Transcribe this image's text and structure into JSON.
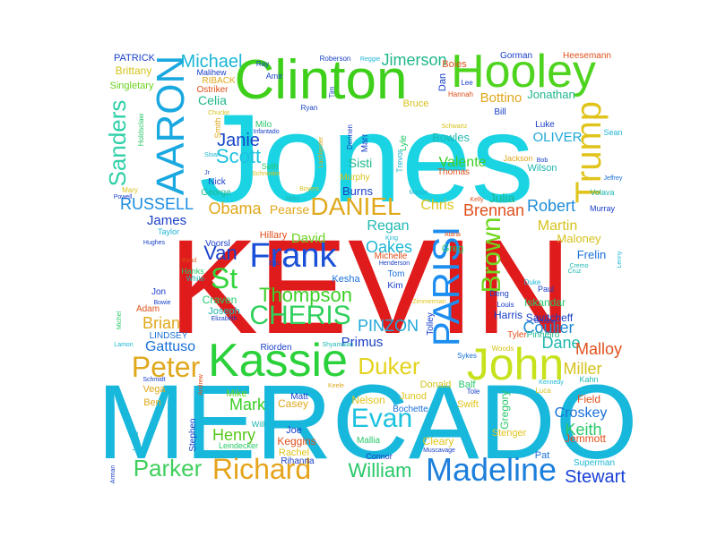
{
  "words": [
    {
      "text": "KEVIN",
      "color": "#e01b1b"
    },
    {
      "text": "Jones",
      "color": "#1ad3e3"
    },
    {
      "text": "MERCADO",
      "color": "#18b7dc"
    },
    {
      "text": "Clinton",
      "color": "#3ecf1b"
    },
    {
      "text": "Hooley",
      "color": "#4ed41e"
    },
    {
      "text": "Kassie",
      "color": "#2bd13a"
    },
    {
      "text": "John",
      "color": "#c7e21d"
    },
    {
      "text": "Madeline",
      "color": "#1c7fdc"
    },
    {
      "text": "AARON",
      "color": "#19a8e0"
    },
    {
      "text": "PARISI",
      "color": "#1d8ef0"
    },
    {
      "text": "Richard",
      "color": "#e5a41b"
    },
    {
      "text": "Trump",
      "color": "#e0c41c"
    },
    {
      "text": "Frank",
      "color": "#1a4fd8"
    },
    {
      "text": "Brown",
      "color": "#6fd81e"
    },
    {
      "text": "Peter",
      "color": "#e0a81c"
    },
    {
      "text": "Parker",
      "color": "#3fcf5c"
    },
    {
      "text": "DANIEL",
      "color": "#e0a81c"
    },
    {
      "text": "Sanders",
      "color": "#2fd0a8"
    },
    {
      "text": "CHERIS",
      "color": "#2fd05c"
    },
    {
      "text": "St",
      "color": "#33d33d"
    },
    {
      "text": "Evan",
      "color": "#1cc2e0"
    },
    {
      "text": "William",
      "color": "#28c86a"
    },
    {
      "text": "Stewart",
      "color": "#1940d8"
    },
    {
      "text": "Duker",
      "color": "#e4d21c"
    },
    {
      "text": "Thompson",
      "color": "#3acf26"
    },
    {
      "text": "Scott",
      "color": "#1cc2e0"
    },
    {
      "text": "Janie",
      "color": "#1846c8"
    },
    {
      "text": "Michael",
      "color": "#1ab6d6"
    },
    {
      "text": "Jimerson",
      "color": "#1fb78c"
    },
    {
      "text": "RUSSELL",
      "color": "#1a8ce0"
    },
    {
      "text": "Obama",
      "color": "#e0a81c"
    },
    {
      "text": "Brennan",
      "color": "#e0501c"
    },
    {
      "text": "Robert",
      "color": "#1f8cd8"
    },
    {
      "text": "Martin",
      "color": "#d6c21c"
    },
    {
      "text": "Chris",
      "color": "#e0c41c"
    },
    {
      "text": "Regan",
      "color": "#1fb7b0"
    },
    {
      "text": "Oakes",
      "color": "#1fb7d4"
    },
    {
      "text": "David",
      "color": "#6ad21e"
    },
    {
      "text": "Van",
      "color": "#1a40c8"
    },
    {
      "text": "Brian",
      "color": "#e0a81c"
    },
    {
      "text": "Coulier",
      "color": "#1f8cd8"
    },
    {
      "text": "Dane",
      "color": "#1fb7b0"
    },
    {
      "text": "Malloy",
      "color": "#e0501c"
    },
    {
      "text": "Miller",
      "color": "#d6c21c"
    },
    {
      "text": "Gattuso",
      "color": "#1a6fd8"
    },
    {
      "text": "PINZON",
      "color": "#1fa8d8"
    },
    {
      "text": "Primus",
      "color": "#1a40c8"
    },
    {
      "text": "Mark",
      "color": "#3acf26"
    },
    {
      "text": "Henry",
      "color": "#58c81e"
    },
    {
      "text": "Croskey",
      "color": "#1a6fd8"
    },
    {
      "text": "Keith",
      "color": "#28c86a"
    },
    {
      "text": "Valente",
      "color": "#3acf26"
    },
    {
      "text": "Bottino",
      "color": "#e0a81c"
    },
    {
      "text": "Jonathan",
      "color": "#1fb78c"
    },
    {
      "text": "OLIVER",
      "color": "#1fa8d8"
    },
    {
      "text": "Bowles",
      "color": "#1fb7b0"
    },
    {
      "text": "James",
      "color": "#1a40c8"
    },
    {
      "text": "Pearse",
      "color": "#e0a81c"
    },
    {
      "text": "Burns",
      "color": "#1a40c8"
    },
    {
      "text": "Sisti",
      "color": "#1fb78c"
    },
    {
      "text": "Celia",
      "color": "#1fb78c"
    },
    {
      "text": "Brittany",
      "color": "#d6c21c"
    },
    {
      "text": "PATRICK",
      "color": "#1a40c8"
    },
    {
      "text": "Singletary",
      "color": "#6ad21e"
    },
    {
      "text": "Julia",
      "color": "#1fb78c"
    },
    {
      "text": "Maloney",
      "color": "#d6c21c"
    },
    {
      "text": "Frelin",
      "color": "#1a6fd8"
    },
    {
      "text": "Iskandar",
      "color": "#28c86a"
    },
    {
      "text": "Savitcheff",
      "color": "#1a40c8"
    },
    {
      "text": "Harris",
      "color": "#1a40c8"
    },
    {
      "text": "Craven",
      "color": "#28c86a"
    },
    {
      "text": "Joseph",
      "color": "#1fb7b0"
    },
    {
      "text": "Nelson",
      "color": "#e0c41c"
    },
    {
      "text": "Casey",
      "color": "#e0a81c"
    },
    {
      "text": "Matt",
      "color": "#1a40c8"
    },
    {
      "text": "Mike",
      "color": "#6ad21e"
    },
    {
      "text": "Joe",
      "color": "#1a40c8"
    },
    {
      "text": "Keggins",
      "color": "#e0501c"
    },
    {
      "text": "Rachel",
      "color": "#e0c41c"
    },
    {
      "text": "Rihanna",
      "color": "#1a40c8"
    },
    {
      "text": "Mallia",
      "color": "#28c86a"
    },
    {
      "text": "Cleary",
      "color": "#e0c41c"
    },
    {
      "text": "Donald",
      "color": "#d6c21c"
    },
    {
      "text": "Junod",
      "color": "#e0c41c"
    },
    {
      "text": "Bochette",
      "color": "#1a6fd8"
    },
    {
      "text": "Swift",
      "color": "#e0c41c"
    },
    {
      "text": "Balf",
      "color": "#28c86a"
    },
    {
      "text": "Gregory",
      "color": "#28c86a"
    },
    {
      "text": "Stenger",
      "color": "#e0c41c"
    },
    {
      "text": "Jemmott",
      "color": "#e0501c"
    },
    {
      "text": "Field",
      "color": "#e0501c"
    },
    {
      "text": "Superman",
      "color": "#1fb7d4"
    },
    {
      "text": "Pat",
      "color": "#1a6fd8"
    },
    {
      "text": "Ben",
      "color": "#e0a81c"
    },
    {
      "text": "Vega",
      "color": "#e0a81c"
    },
    {
      "text": "Tom",
      "color": "#1a6fd8"
    },
    {
      "text": "Kim",
      "color": "#1a40c8"
    },
    {
      "text": "Kesha",
      "color": "#1a6fd8"
    },
    {
      "text": "Greg",
      "color": "#28c86a"
    },
    {
      "text": "Michelle",
      "color": "#e0501c"
    },
    {
      "text": "Hillary",
      "color": "#e0501c"
    },
    {
      "text": "Voorsl",
      "color": "#1a40c8"
    },
    {
      "text": "Nick",
      "color": "#1a40c8"
    },
    {
      "text": "George",
      "color": "#1fb78c"
    },
    {
      "text": "Mary",
      "color": "#d6c21c"
    },
    {
      "text": "Jon",
      "color": "#1a40c8"
    },
    {
      "text": "Adam",
      "color": "#e0501c"
    },
    {
      "text": "LINDSEY",
      "color": "#1a6fd8"
    },
    {
      "text": "Riorden",
      "color": "#1a40c8"
    },
    {
      "text": "Sykes",
      "color": "#1a6fd8"
    },
    {
      "text": "Tyler",
      "color": "#e0501c"
    },
    {
      "text": "Woods",
      "color": "#d6c21c"
    },
    {
      "text": "Kahn",
      "color": "#1fb7b0"
    },
    {
      "text": "Luca",
      "color": "#d6c21c"
    },
    {
      "text": "Kennedy",
      "color": "#1fb7d4"
    },
    {
      "text": "Deng",
      "color": "#1a40c8"
    },
    {
      "text": "Paul",
      "color": "#1a40c8"
    },
    {
      "text": "Louis",
      "color": "#1a40c8"
    },
    {
      "text": "Pinheiro",
      "color": "#1fb78c"
    },
    {
      "text": "Lyle",
      "color": "#28c86a"
    },
    {
      "text": "Trevor",
      "color": "#1fb7d4"
    },
    {
      "text": "Bruce",
      "color": "#d6c21c"
    },
    {
      "text": "Dan",
      "color": "#1a40c8"
    },
    {
      "text": "Boies",
      "color": "#e0501c"
    },
    {
      "text": "Gorman",
      "color": "#1a40c8"
    },
    {
      "text": "Heesemann",
      "color": "#e0501c"
    },
    {
      "text": "Lee",
      "color": "#1a40c8"
    },
    {
      "text": "Hannah",
      "color": "#e0501c"
    },
    {
      "text": "Bill",
      "color": "#1a40c8"
    },
    {
      "text": "Luke",
      "color": "#1a40c8"
    },
    {
      "text": "Sean",
      "color": "#1fb7d4"
    },
    {
      "text": "Wilson",
      "color": "#1fb7b0"
    },
    {
      "text": "Jackson",
      "color": "#e0a81c"
    },
    {
      "text": "Thomas",
      "color": "#e0501c"
    },
    {
      "text": "Schwartz",
      "color": "#d6c21c"
    },
    {
      "text": "Murphy",
      "color": "#d6c21c"
    },
    {
      "text": "Dennen",
      "color": "#1a40c8"
    },
    {
      "text": "Marr",
      "color": "#1a40c8"
    },
    {
      "text": "Seth",
      "color": "#28c86a"
    },
    {
      "text": "Milo",
      "color": "#28c86a"
    },
    {
      "text": "Smith",
      "color": "#e0a81c"
    },
    {
      "text": "Roberson",
      "color": "#1a40c8"
    },
    {
      "text": "Ryan",
      "color": "#1a40c8"
    },
    {
      "text": "Amir",
      "color": "#1a40c8"
    },
    {
      "text": "Malihew",
      "color": "#1a40c8"
    },
    {
      "text": "RIBACK",
      "color": "#e0a81c"
    },
    {
      "text": "Ostriker",
      "color": "#e0501c"
    },
    {
      "text": "Holdsclaw",
      "color": "#28c86a"
    },
    {
      "text": "Taylor",
      "color": "#1fb7d4"
    },
    {
      "text": "Hughes",
      "color": "#1a40c8"
    },
    {
      "text": "Hanks",
      "color": "#28c86a"
    },
    {
      "text": "White",
      "color": "#1fb7b0"
    },
    {
      "text": "Bond",
      "color": "#e0501c"
    },
    {
      "text": "Powell",
      "color": "#1a40c8"
    },
    {
      "text": "Kelly",
      "color": "#e0501c"
    },
    {
      "text": "Abby",
      "color": "#1fb7b0"
    },
    {
      "text": "Boyers",
      "color": "#d6c21c"
    },
    {
      "text": "Mason",
      "color": "#1fb7d4"
    },
    {
      "text": "Volava",
      "color": "#1fb7b0"
    },
    {
      "text": "Murray",
      "color": "#1a40c8"
    },
    {
      "text": "Jeffrey",
      "color": "#1a6fd8"
    },
    {
      "text": "Cremo",
      "color": "#1fb7b0"
    },
    {
      "text": "Lenny",
      "color": "#1fb7d4"
    },
    {
      "text": "Duke",
      "color": "#1fb7d4"
    },
    {
      "text": "Zimmerman",
      "color": "#e0c41c"
    },
    {
      "text": "Tolley",
      "color": "#1a40c8"
    },
    {
      "text": "Schmidt",
      "color": "#1a40c8"
    },
    {
      "text": "Keele",
      "color": "#e0a81c"
    },
    {
      "text": "Shyamalan",
      "color": "#1fb7b0"
    },
    {
      "text": "Isaac",
      "color": "#1fb7d4"
    },
    {
      "text": "Stephen",
      "color": "#1a40c8"
    },
    {
      "text": "Leindecker",
      "color": "#28c86a"
    },
    {
      "text": "Connor",
      "color": "#1a40c8"
    },
    {
      "text": "Muscavage",
      "color": "#1a40c8"
    },
    {
      "text": "Elizabeth",
      "color": "#1a40c8"
    },
    {
      "text": "Bowie",
      "color": "#1a40c8"
    },
    {
      "text": "Michel",
      "color": "#28c86a"
    },
    {
      "text": "Lamon",
      "color": "#1fb7d4"
    },
    {
      "text": "Andrew",
      "color": "#e0501c"
    },
    {
      "text": "Arman",
      "color": "#1a40c8"
    },
    {
      "text": "Will",
      "color": "#1fb7b0"
    },
    {
      "text": "Tole",
      "color": "#1a40c8"
    },
    {
      "text": "Cruz",
      "color": "#1fb7b0"
    },
    {
      "text": "Benson",
      "color": "#1a40c8"
    },
    {
      "text": "Alaria",
      "color": "#e0501c"
    },
    {
      "text": "King",
      "color": "#1fb7d4"
    },
    {
      "text": "Henderson",
      "color": "#1a40c8"
    },
    {
      "text": "Enc",
      "color": "#1a40c8"
    },
    {
      "text": "Jr",
      "color": "#1a40c8"
    },
    {
      "text": "Infantado",
      "color": "#1a40c8"
    },
    {
      "text": "Sloan",
      "color": "#1fb7d4"
    },
    {
      "text": "Chucke",
      "color": "#d6c21c"
    },
    {
      "text": "Lachlander",
      "color": "#e0a81c"
    },
    {
      "text": "Schneider",
      "color": "#d6c21c"
    },
    {
      "text": "Reggie",
      "color": "#1fb7d4"
    },
    {
      "text": "Ray",
      "color": "#1a40c8"
    },
    {
      "text": "Tim",
      "color": "#1a40c8"
    },
    {
      "text": "Bob",
      "color": "#1a40c8"
    }
  ]
}
